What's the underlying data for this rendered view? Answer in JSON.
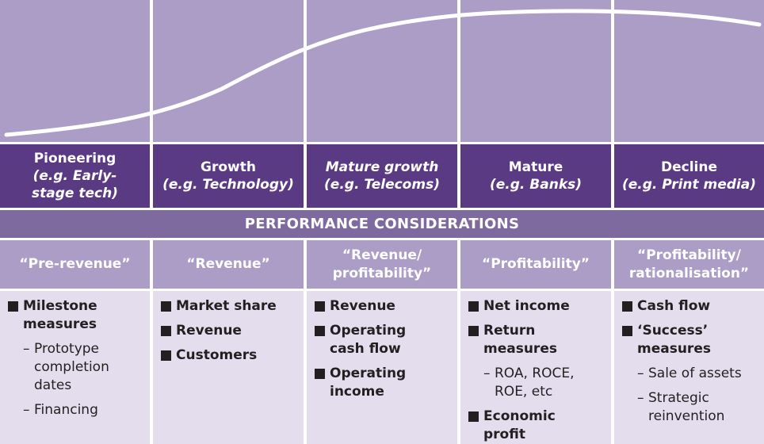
{
  "stages": [
    {
      "name": "Pioneering",
      "example": "(e.g. Early-\nstage tech)",
      "name_italic": false
    },
    {
      "name": "Growth",
      "example": "(e.g. Technology)",
      "name_italic": false
    },
    {
      "name": "Mature growth",
      "example": "(e.g. Telecoms)",
      "name_italic": true
    },
    {
      "name": "Mature",
      "example": "(e.g. Banks)",
      "name_italic": false
    },
    {
      "name": "Decline",
      "example": "(e.g. Print media)",
      "name_italic": false
    }
  ],
  "banner": "PERFORMANCE CONSIDERATIONS",
  "measures": [
    "“Pre-revenue”",
    "“Revenue”",
    "“Revenue/\nprofitability”",
    "“Profitability”",
    "“Profitability/\nrationalisation”"
  ],
  "lists": [
    [
      {
        "text": "Milestone\nmeasures",
        "subs": [
          "Prototype\ncompletion\ndates",
          "Financing"
        ]
      }
    ],
    [
      {
        "text": "Market share",
        "subs": []
      },
      {
        "text": "Revenue",
        "subs": []
      },
      {
        "text": "Customers",
        "subs": []
      }
    ],
    [
      {
        "text": "Revenue",
        "subs": []
      },
      {
        "text": "Operating\ncash flow",
        "subs": []
      },
      {
        "text": "Operating\nincome",
        "subs": []
      }
    ],
    [
      {
        "text": "Net income",
        "subs": []
      },
      {
        "text": "Return\nmeasures",
        "subs": [
          "ROA, ROCE,\nROE, etc"
        ]
      },
      {
        "text": "Economic\nprofit",
        "subs": []
      }
    ],
    [
      {
        "text": "Cash flow",
        "subs": []
      },
      {
        "text": "‘Success’\nmeasures",
        "subs": [
          "Sale of assets",
          "Strategic\nreinvention"
        ]
      }
    ]
  ],
  "colors": {
    "curve_panel": "#ab9dc6",
    "stage_header": "#5b3a84",
    "banner": "#7e6a9e",
    "list_panel": "#e4ddee",
    "curve_line": "#ffffff"
  }
}
